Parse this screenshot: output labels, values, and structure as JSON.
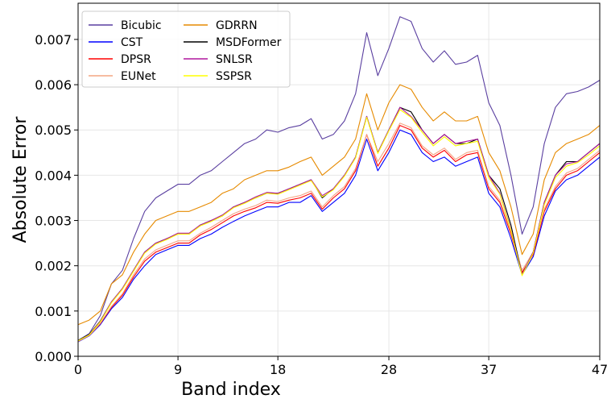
{
  "chart_data": {
    "type": "line",
    "title": "",
    "xlabel": "Band index",
    "ylabel": "Absolute Error",
    "xlim": [
      0,
      47
    ],
    "ylim": [
      0,
      0.0078
    ],
    "xticks": [
      0,
      9,
      18,
      28,
      37,
      47
    ],
    "yticks": [
      0.0,
      0.001,
      0.002,
      0.003,
      0.004,
      0.005,
      0.006,
      0.007
    ],
    "ytick_labels": [
      "0.000",
      "0.001",
      "0.002",
      "0.003",
      "0.004",
      "0.005",
      "0.006",
      "0.007"
    ],
    "grid": true,
    "legend_position": "top-left",
    "x": [
      0,
      1,
      2,
      3,
      4,
      5,
      6,
      7,
      8,
      9,
      10,
      11,
      12,
      13,
      14,
      15,
      16,
      17,
      18,
      19,
      20,
      21,
      22,
      23,
      24,
      25,
      26,
      27,
      28,
      29,
      30,
      31,
      32,
      33,
      34,
      35,
      36,
      37,
      38,
      39,
      40,
      41,
      42,
      43,
      44,
      45,
      46,
      47
    ],
    "series": [
      {
        "name": "Bicubic",
        "color": "#5a3fa0",
        "values": [
          0.00035,
          0.0005,
          0.0009,
          0.0016,
          0.0019,
          0.0026,
          0.0032,
          0.0035,
          0.00365,
          0.0038,
          0.0038,
          0.004,
          0.0041,
          0.0043,
          0.0045,
          0.0047,
          0.0048,
          0.005,
          0.00495,
          0.00505,
          0.0051,
          0.00525,
          0.0048,
          0.0049,
          0.0052,
          0.0058,
          0.00715,
          0.0062,
          0.0068,
          0.0075,
          0.0074,
          0.0068,
          0.0065,
          0.00675,
          0.00645,
          0.0065,
          0.00665,
          0.0056,
          0.0051,
          0.004,
          0.0027,
          0.0033,
          0.0047,
          0.0055,
          0.0058,
          0.00585,
          0.00595,
          0.0061
        ]
      },
      {
        "name": "CST",
        "color": "#0000ff",
        "values": [
          0.00032,
          0.00045,
          0.0007,
          0.00105,
          0.0013,
          0.0017,
          0.002,
          0.00225,
          0.00235,
          0.00245,
          0.00245,
          0.0026,
          0.0027,
          0.00285,
          0.00298,
          0.0031,
          0.0032,
          0.0033,
          0.0033,
          0.0034,
          0.0034,
          0.00355,
          0.0032,
          0.0034,
          0.0036,
          0.004,
          0.0048,
          0.0041,
          0.0045,
          0.005,
          0.0049,
          0.0045,
          0.0043,
          0.0044,
          0.0042,
          0.0043,
          0.0044,
          0.0036,
          0.0033,
          0.0026,
          0.0018,
          0.0022,
          0.0031,
          0.00365,
          0.0039,
          0.004,
          0.0042,
          0.0044
        ]
      },
      {
        "name": "DPSR",
        "color": "#ff0000",
        "values": [
          0.00033,
          0.00046,
          0.00072,
          0.00108,
          0.00135,
          0.00175,
          0.0021,
          0.0023,
          0.0024,
          0.0025,
          0.0025,
          0.00268,
          0.0028,
          0.00295,
          0.0031,
          0.0032,
          0.00328,
          0.0034,
          0.00338,
          0.00345,
          0.0035,
          0.0036,
          0.00325,
          0.0035,
          0.0037,
          0.0041,
          0.0049,
          0.0042,
          0.0046,
          0.0051,
          0.005,
          0.0046,
          0.0044,
          0.00455,
          0.0043,
          0.00445,
          0.0045,
          0.0037,
          0.0034,
          0.0027,
          0.00185,
          0.00225,
          0.0032,
          0.0037,
          0.004,
          0.0041,
          0.0043,
          0.0045
        ]
      },
      {
        "name": "EUNet",
        "color": "#f4a582",
        "values": [
          0.00033,
          0.00046,
          0.00073,
          0.0011,
          0.00138,
          0.0018,
          0.00215,
          0.00235,
          0.00245,
          0.00255,
          0.00255,
          0.00272,
          0.00285,
          0.003,
          0.00315,
          0.00325,
          0.00333,
          0.00345,
          0.00342,
          0.0035,
          0.00355,
          0.00365,
          0.0033,
          0.00355,
          0.00375,
          0.00415,
          0.0049,
          0.0043,
          0.0047,
          0.00515,
          0.00505,
          0.00465,
          0.00445,
          0.0046,
          0.00435,
          0.0045,
          0.00455,
          0.00375,
          0.00345,
          0.00275,
          0.0019,
          0.0023,
          0.00325,
          0.00375,
          0.00405,
          0.00415,
          0.00435,
          0.00455
        ]
      },
      {
        "name": "GDRRN",
        "color": "#e68a00",
        "values": [
          0.0007,
          0.0008,
          0.001,
          0.0016,
          0.0018,
          0.0023,
          0.0027,
          0.003,
          0.0031,
          0.0032,
          0.0032,
          0.0033,
          0.0034,
          0.0036,
          0.0037,
          0.0039,
          0.004,
          0.0041,
          0.0041,
          0.00418,
          0.0043,
          0.0044,
          0.004,
          0.0042,
          0.0044,
          0.0048,
          0.0058,
          0.005,
          0.0056,
          0.006,
          0.0059,
          0.0055,
          0.0052,
          0.0054,
          0.0052,
          0.0052,
          0.0053,
          0.0045,
          0.0041,
          0.0033,
          0.00225,
          0.0027,
          0.0039,
          0.0045,
          0.0047,
          0.0048,
          0.0049,
          0.0051
        ]
      },
      {
        "name": "MSDFormer",
        "color": "#000000",
        "values": [
          0.00035,
          0.00048,
          0.00078,
          0.0012,
          0.0015,
          0.0019,
          0.0023,
          0.0025,
          0.0026,
          0.0027,
          0.0027,
          0.0029,
          0.003,
          0.0031,
          0.0033,
          0.0034,
          0.0035,
          0.0036,
          0.0036,
          0.0037,
          0.0038,
          0.0039,
          0.0035,
          0.0037,
          0.004,
          0.0044,
          0.0053,
          0.0045,
          0.005,
          0.0055,
          0.0054,
          0.005,
          0.0047,
          0.0049,
          0.0047,
          0.0047,
          0.0048,
          0.004,
          0.0037,
          0.0029,
          0.0018,
          0.0023,
          0.0034,
          0.004,
          0.0043,
          0.0043,
          0.0045,
          0.0047
        ]
      },
      {
        "name": "SNLSR",
        "color": "#b0169e",
        "values": [
          0.00034,
          0.00047,
          0.00077,
          0.0012,
          0.0015,
          0.0019,
          0.0023,
          0.0025,
          0.0026,
          0.00272,
          0.00272,
          0.0029,
          0.003,
          0.00312,
          0.0033,
          0.0034,
          0.00352,
          0.00362,
          0.0036,
          0.0037,
          0.0038,
          0.0039,
          0.00355,
          0.0037,
          0.004,
          0.0044,
          0.0053,
          0.0045,
          0.005,
          0.0055,
          0.0053,
          0.005,
          0.0047,
          0.0049,
          0.0047,
          0.00475,
          0.0048,
          0.004,
          0.0036,
          0.0028,
          0.0018,
          0.0023,
          0.0034,
          0.004,
          0.00425,
          0.0043,
          0.0045,
          0.0047
        ]
      },
      {
        "name": "SSPSR",
        "color": "#ffff00",
        "values": [
          0.00034,
          0.00047,
          0.00076,
          0.00118,
          0.00148,
          0.00188,
          0.00228,
          0.00248,
          0.00258,
          0.0027,
          0.0027,
          0.00288,
          0.00298,
          0.0031,
          0.00328,
          0.00338,
          0.0035,
          0.0036,
          0.00358,
          0.00368,
          0.00378,
          0.00388,
          0.00352,
          0.00368,
          0.00398,
          0.00438,
          0.00528,
          0.00448,
          0.00498,
          0.00545,
          0.00528,
          0.00495,
          0.00465,
          0.00485,
          0.00465,
          0.0047,
          0.00475,
          0.00395,
          0.00358,
          0.00278,
          0.00178,
          0.00228,
          0.00335,
          0.00395,
          0.0042,
          0.00428,
          0.00445,
          0.00465
        ]
      }
    ]
  }
}
